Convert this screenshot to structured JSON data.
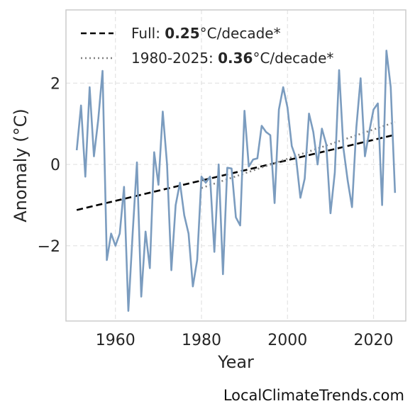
{
  "chart_data": {
    "type": "line",
    "xlabel": "Year",
    "ylabel": "Anomaly (°C)",
    "xlim": [
      1948.5,
      2027.5
    ],
    "ylim": [
      -3.85,
      3.8
    ],
    "x_ticks": [
      1960,
      1980,
      2000,
      2020
    ],
    "y_ticks": [
      -2,
      0,
      2
    ],
    "y_tick_labels": [
      "−2",
      "0",
      "2"
    ],
    "grid": true,
    "legend_position": "top-left",
    "series": [
      {
        "color": "#7b9cbf",
        "x": [
          1951,
          1952,
          1953,
          1954,
          1955,
          1956,
          1957,
          1958,
          1959,
          1960,
          1961,
          1962,
          1963,
          1964,
          1965,
          1966,
          1967,
          1968,
          1969,
          1970,
          1971,
          1972,
          1973,
          1974,
          1975,
          1976,
          1977,
          1978,
          1979,
          1980,
          1981,
          1982,
          1983,
          1984,
          1985,
          1986,
          1987,
          1988,
          1989,
          1990,
          1991,
          1992,
          1993,
          1994,
          1995,
          1996,
          1997,
          1998,
          1999,
          2000,
          2001,
          2002,
          2003,
          2004,
          2005,
          2006,
          2007,
          2008,
          2009,
          2010,
          2011,
          2012,
          2013,
          2014,
          2015,
          2016,
          2017,
          2018,
          2019,
          2020,
          2021,
          2022,
          2023,
          2024,
          2025
        ],
        "y": [
          0.35,
          1.45,
          -0.3,
          1.9,
          0.2,
          1.1,
          2.3,
          -2.35,
          -1.7,
          -2.0,
          -1.7,
          -0.55,
          -3.6,
          -1.7,
          0.05,
          -3.25,
          -1.65,
          -2.55,
          0.3,
          -0.5,
          1.3,
          0.0,
          -2.6,
          -1.0,
          -0.45,
          -1.25,
          -1.7,
          -3.0,
          -2.35,
          -0.3,
          -0.45,
          -0.3,
          -2.15,
          0.0,
          -2.7,
          -0.08,
          -0.1,
          -1.3,
          -1.5,
          1.32,
          -0.05,
          0.12,
          0.15,
          0.95,
          0.8,
          0.72,
          -0.95,
          1.35,
          1.9,
          1.4,
          0.45,
          0.15,
          -0.82,
          -0.35,
          1.25,
          0.8,
          0.0,
          0.88,
          0.5,
          -1.2,
          -0.2,
          2.32,
          0.4,
          -0.4,
          -1.05,
          0.9,
          2.12,
          0.2,
          0.8,
          1.35,
          1.5,
          -1.0,
          2.8,
          1.9,
          -0.7
        ]
      }
    ],
    "trend_lines": [
      {
        "name_prefix": "Full: ",
        "value": "0.25",
        "name_suffix": "°C/decade*",
        "style": "dashed",
        "color": "#000000",
        "x": [
          1951,
          2025
        ],
        "y": [
          -1.12,
          0.73
        ]
      },
      {
        "name_prefix": "1980-2025: ",
        "value": "0.36",
        "name_suffix": "°C/decade*",
        "style": "dotted",
        "color": "#808080",
        "x": [
          1980,
          2025
        ],
        "y": [
          -0.58,
          1.04
        ]
      }
    ]
  },
  "credit": "LocalClimateTrends.com"
}
